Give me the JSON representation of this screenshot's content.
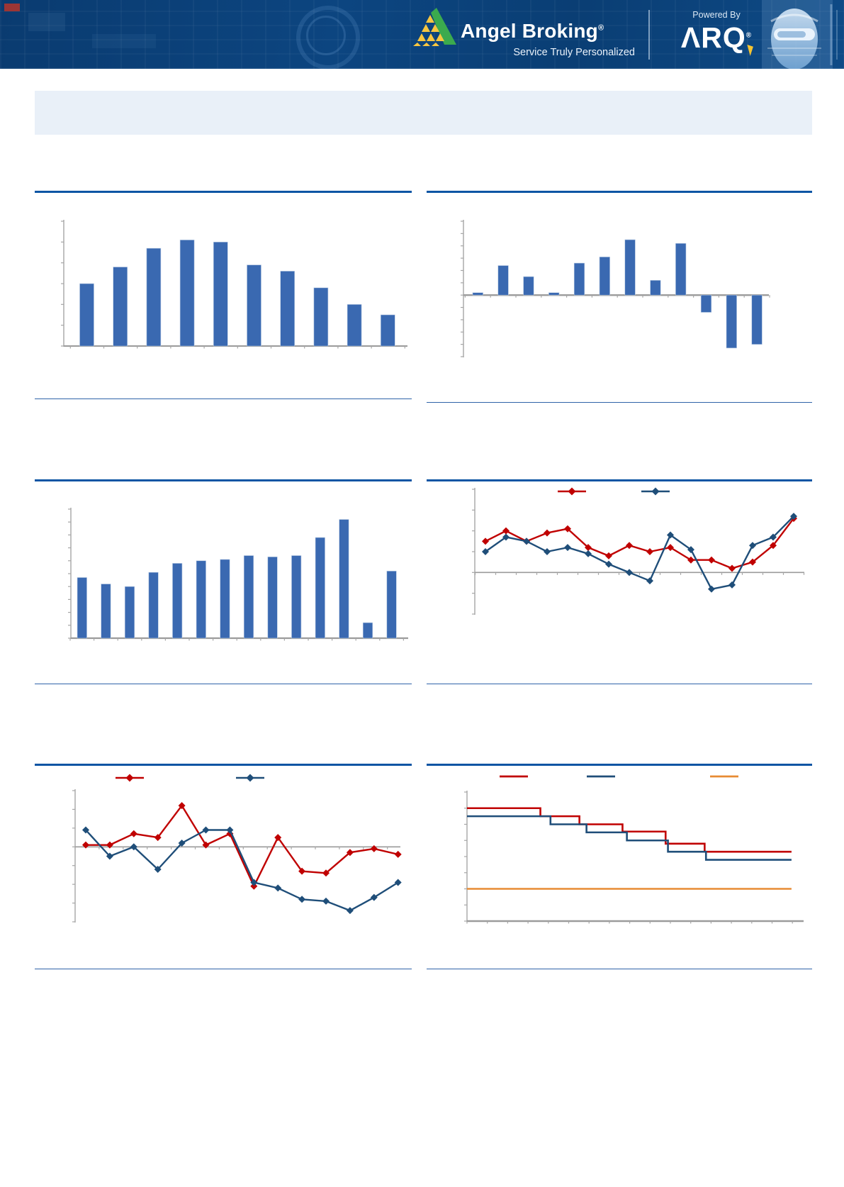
{
  "header": {
    "brand": "Angel Broking",
    "brand_reg": "®",
    "tagline": "Service Truly Personalized",
    "powered_by": "Powered By",
    "arq": "ΛRQ",
    "arq_reg": "®",
    "brand_colors": {
      "header_blue": "#0c4580",
      "logo_green": "#3baa4e",
      "logo_yellow": "#f7c640",
      "arq_yellow": "#f5c431"
    }
  },
  "title_box": {
    "text": ""
  },
  "chart_data": [
    {
      "type": "bar",
      "position": "top-left",
      "title": "",
      "color": "#3a69b1",
      "values": [
        3.0,
        3.8,
        4.7,
        5.1,
        5.0,
        3.9,
        3.6,
        2.8,
        2.0,
        1.5
      ],
      "ylim": [
        0,
        6
      ],
      "ytick": 1,
      "grid": false,
      "tick_labels_visible": false
    },
    {
      "type": "bar",
      "position": "top-right",
      "title": "",
      "color": "#3a69b1",
      "values": [
        0.2,
        2.4,
        1.5,
        0.2,
        2.6,
        3.1,
        4.5,
        1.2,
        4.2,
        -1.4,
        -4.3,
        -4.0
      ],
      "ylim": [
        -5,
        6
      ],
      "ytick": 1,
      "grid": false,
      "tick_labels_visible": false
    },
    {
      "type": "bar",
      "position": "middle-left",
      "title": "",
      "color": "#3a69b1",
      "values": [
        4.7,
        4.2,
        4.0,
        5.1,
        5.8,
        6.0,
        6.1,
        6.4,
        6.3,
        6.4,
        7.8,
        9.2,
        1.2,
        5.2
      ],
      "ylim": [
        0,
        10
      ],
      "ytick": 1,
      "grid": false,
      "tick_labels_visible": false
    },
    {
      "type": "line",
      "position": "middle-right",
      "title": "",
      "marker": "diamond",
      "legend_position": "top",
      "legend_labels_visible": false,
      "series": [
        {
          "name": "series-red",
          "color": "#c00000",
          "values": [
            1.5,
            2.0,
            1.5,
            1.9,
            2.1,
            1.2,
            0.8,
            1.3,
            1.0,
            1.2,
            0.6,
            0.6,
            0.2,
            0.5,
            1.3,
            2.6
          ]
        },
        {
          "name": "series-navy",
          "color": "#1f4e79",
          "values": [
            1.0,
            1.7,
            1.5,
            1.0,
            1.2,
            0.9,
            0.4,
            0.0,
            -0.4,
            1.8,
            1.1,
            -0.8,
            -0.6,
            1.3,
            1.7,
            2.7
          ]
        }
      ],
      "ylim": [
        -2,
        4
      ],
      "ytick": 1,
      "grid": false,
      "tick_labels_visible": false
    },
    {
      "type": "line",
      "position": "bottom-left",
      "title": "",
      "marker": "diamond",
      "legend_position": "top",
      "legend_labels_visible": false,
      "series": [
        {
          "name": "series-red",
          "color": "#c00000",
          "values": [
            0.1,
            0.1,
            0.7,
            0.5,
            2.2,
            0.1,
            0.7,
            -2.1,
            0.5,
            -1.3,
            -1.4,
            -0.3,
            -0.1,
            -0.4
          ]
        },
        {
          "name": "series-navy",
          "color": "#1f4e79",
          "values": [
            0.9,
            -0.5,
            0.0,
            -1.2,
            0.2,
            0.9,
            0.9,
            -1.9,
            -2.2,
            -2.8,
            -2.9,
            -3.4,
            -2.7,
            -1.9
          ]
        }
      ],
      "ylim": [
        -4,
        3
      ],
      "ytick": 1,
      "grid": false,
      "tick_labels_visible": false
    },
    {
      "type": "step",
      "position": "bottom-right",
      "title": "",
      "legend_position": "top",
      "legend_labels_visible": false,
      "series": [
        {
          "name": "step-red",
          "color": "#c00000",
          "x_breaks": [
            0,
            0.218,
            0.334,
            0.462,
            0.59,
            0.706
          ],
          "levels": [
            7.0,
            6.5,
            6.0,
            5.55,
            4.8,
            4.3
          ],
          "x_end": 0.964
        },
        {
          "name": "step-navy",
          "color": "#1f4e79",
          "x_breaks": [
            0,
            0.248,
            0.355,
            0.475,
            0.597,
            0.71
          ],
          "levels": [
            6.5,
            6.0,
            5.5,
            5.0,
            4.3,
            3.8
          ],
          "x_end": 0.964
        },
        {
          "name": "step-orange",
          "color": "#e78b33",
          "x_breaks": [
            0
          ],
          "levels": [
            2.0
          ],
          "x_end": 0.964
        }
      ],
      "ylim": [
        0,
        8
      ],
      "ytick": 1,
      "grid": false,
      "tick_labels_visible": false
    }
  ]
}
